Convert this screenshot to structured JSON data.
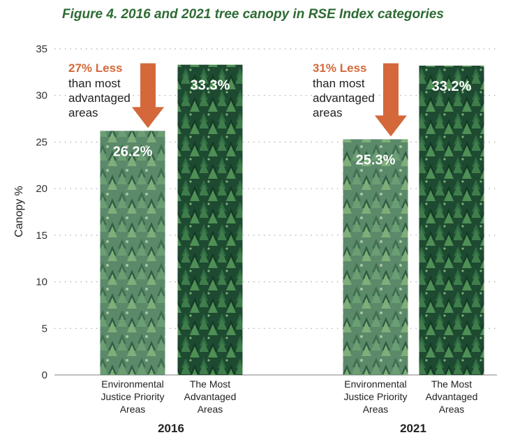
{
  "chart_data": {
    "type": "bar",
    "title": "Figure 4. 2016 and 2021 tree canopy in RSE Index categories",
    "ylabel": "Canopy %",
    "ylim": [
      0,
      35
    ],
    "yticks": [
      0,
      5,
      10,
      15,
      20,
      25,
      30,
      35
    ],
    "grid": true,
    "groups": [
      {
        "name": "2016",
        "bars": [
          {
            "category": "Environmental Justice Priority Areas",
            "value": 26.2,
            "label": "26.2%"
          },
          {
            "category": "The Most Advantaged Areas",
            "value": 33.3,
            "label": "33.3%"
          }
        ],
        "annotation": {
          "headline": "27% Less",
          "text": [
            "than most",
            "advantaged",
            "areas"
          ]
        }
      },
      {
        "name": "2021",
        "bars": [
          {
            "category": "Environmental Justice Priority Areas",
            "value": 25.3,
            "label": "25.3%"
          },
          {
            "category": "The Most Advantaged Areas",
            "value": 33.2,
            "label": "33.2%"
          }
        ],
        "annotation": {
          "headline": "31% Less",
          "text": [
            "than most",
            "advantaged",
            "areas"
          ]
        }
      }
    ],
    "category_labels": {
      "Environmental Justice Priority Areas": [
        "Environmental",
        "Justice Priority",
        "Areas"
      ],
      "The Most Advantaged Areas": [
        "The Most",
        "Advantaged",
        "Areas"
      ]
    }
  },
  "colors": {
    "title": "#2e6b34",
    "annotation": "#d4683b",
    "priority_bar": "#4f7a60",
    "advantaged_bar": "#1f4a30",
    "grid": "#9a9a9a"
  }
}
